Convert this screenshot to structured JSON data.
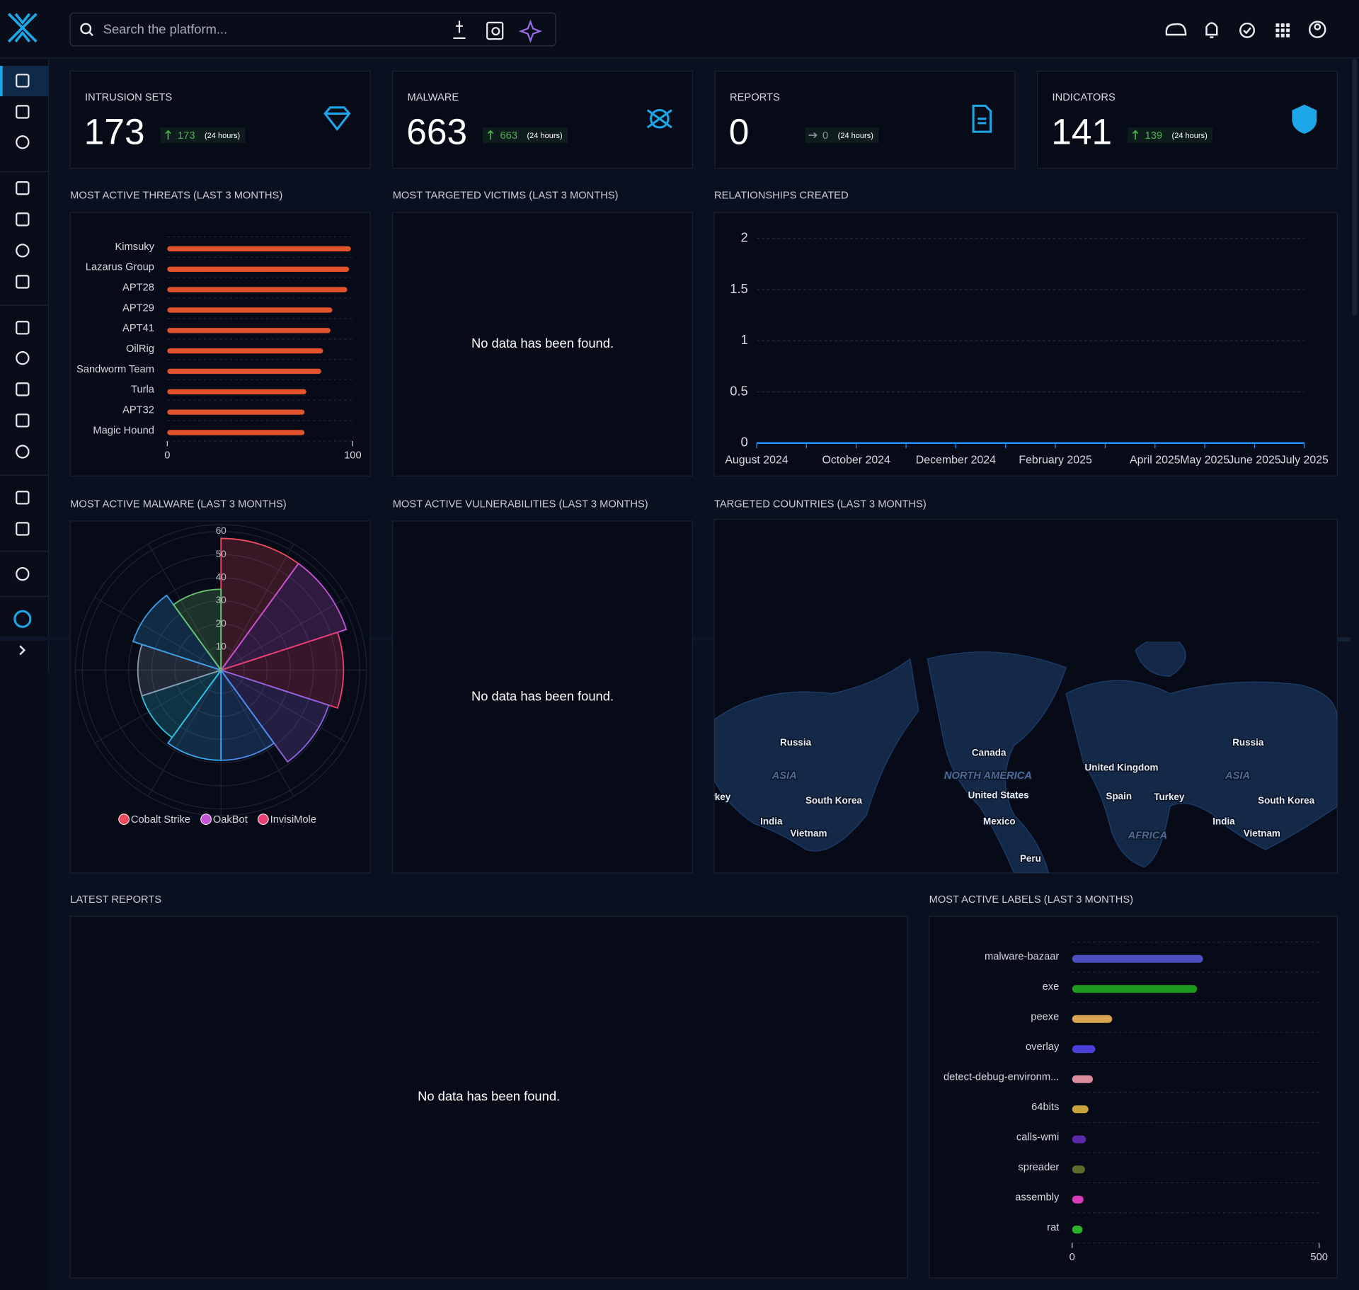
{
  "header": {
    "search_placeholder": "Search the platform..."
  },
  "stats": [
    {
      "label": "INTRUSION SETS",
      "value": 173,
      "delta": 173,
      "period": "(24 hours)"
    },
    {
      "label": "MALWARE",
      "value": 663,
      "delta": 663,
      "period": "(24 hours)"
    },
    {
      "label": "REPORTS",
      "value": 0,
      "delta": 0,
      "period": "(24 hours)"
    },
    {
      "label": "INDICATORS",
      "value": 141,
      "delta": 139,
      "period": "(24 hours)"
    }
  ],
  "victims": {
    "title": "MOST TARGETED VICTIMS (LAST 3 MONTHS)",
    "message": "No data has been found."
  },
  "vulnerabilities": {
    "title": "MOST ACTIVE VULNERABILITIES (LAST 3 MONTHS)",
    "message": "No data has been found."
  },
  "reports": {
    "title": "LATEST REPORTS",
    "message": "No data has been found."
  },
  "map": {
    "title": "TARGETED COUNTRIES (LAST 3 MONTHS)",
    "labels": [
      "Russia",
      "ASIA",
      "South Korea",
      "India",
      "Vietnam",
      "Turkey",
      "Canada",
      "NORTH AMERICA",
      "United States",
      "Mexico",
      "Peru",
      "United Kingdom",
      "Spain",
      "Turkey",
      "AFRICA",
      "Russia",
      "ASIA",
      "South Korea",
      "India",
      "Vietnam"
    ]
  },
  "chart_data": [
    {
      "type": "hbar",
      "title": "MOST ACTIVE THREATS (LAST 3 MONTHS)",
      "categories": [
        "Kimsuky",
        "Lazarus Group",
        "APT28",
        "APT29",
        "APT41",
        "OilRig",
        "Sandworm Team",
        "Turla",
        "APT32",
        "Magic Hound"
      ],
      "values": [
        99,
        98,
        97,
        89,
        88,
        84,
        83,
        75,
        74,
        74
      ],
      "color": "#e2532d",
      "xlim": [
        0,
        100
      ],
      "xticks": [
        0,
        100
      ],
      "grid": true
    },
    {
      "type": "line",
      "title": "RELATIONSHIPS CREATED",
      "x": [
        "August 2024",
        null,
        "October 2024",
        null,
        "December 2024",
        null,
        "February 2025",
        null,
        "April 2025",
        "May 2025",
        "June 2025",
        "July 2025"
      ],
      "values": [
        0,
        0,
        0,
        0,
        0,
        0,
        0,
        0,
        0,
        0,
        0,
        0
      ],
      "color": "#1e90ff",
      "ylim": [
        0,
        2
      ],
      "yticks": [
        0,
        0.5,
        1,
        1.5,
        2
      ],
      "grid": true
    },
    {
      "type": "polar",
      "title": "MOST ACTIVE MALWARE (LAST 3 MONTHS)",
      "categories": [
        "Cobalt Strike",
        "OakBot",
        "InvisiMole",
        null,
        null,
        null,
        null,
        null,
        null,
        null
      ],
      "values": [
        57,
        57,
        53,
        49,
        39,
        39,
        36,
        36,
        40,
        35
      ],
      "colors": [
        "#ee4b5e",
        "#c653d8",
        "#ea3f74",
        "#8f63e0",
        "#4b8ff2",
        "#3aa6ee",
        "#2cc3df",
        "#8898ad",
        "#3a9ee8",
        "#6cc36f"
      ],
      "rlim": [
        0,
        60
      ],
      "rticks": [
        10,
        20,
        30,
        40,
        50,
        60
      ]
    },
    {
      "type": "hbar",
      "title": "MOST ACTIVE LABELS (LAST 3 MONTHS)",
      "categories": [
        "malware-bazaar",
        "exe",
        "peexe",
        "overlay",
        "detect-debug-environm...",
        "64bits",
        "calls-wmi",
        "spreader",
        "assembly",
        "rat"
      ],
      "values": [
        265,
        253,
        81,
        47,
        42,
        33,
        28,
        26,
        23,
        21
      ],
      "colors": [
        "#4c4fbf",
        "#1e9a1e",
        "#d9a553",
        "#4a3fd8",
        "#d88c9c",
        "#c9a23a",
        "#5b2aa9",
        "#5b6b2b",
        "#d83bb9",
        "#2ab42a"
      ],
      "xlim": [
        0,
        500
      ],
      "xticks": [
        0,
        500
      ],
      "grid": true
    }
  ]
}
